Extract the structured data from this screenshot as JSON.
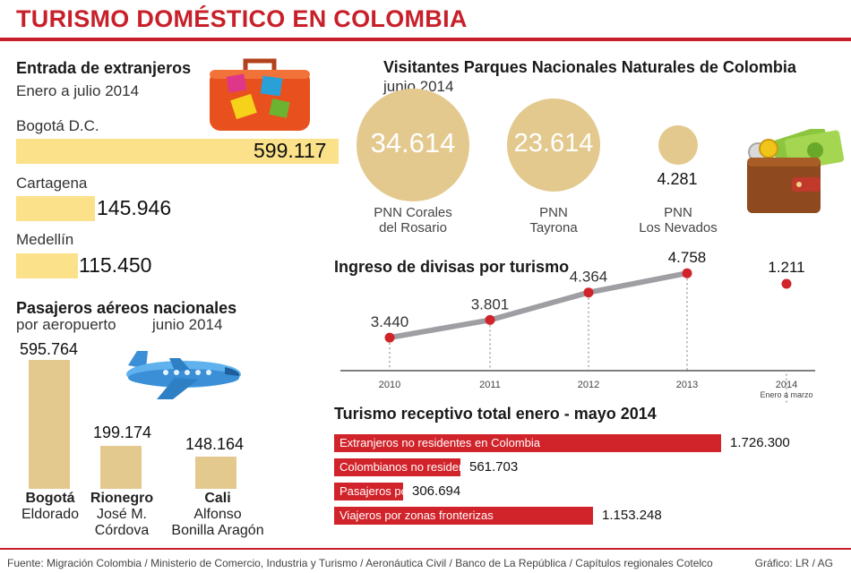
{
  "title": "TURISMO DOMÉSTICO EN COLOMBIA",
  "entrada": {
    "heading": "Entrada de extranjeros",
    "subheading": "Enero a julio 2014",
    "items": [
      {
        "city": "Bogotá D.C.",
        "value": "599.117"
      },
      {
        "city": "Cartagena",
        "value": "145.946"
      },
      {
        "city": "Medellín",
        "value": "115.450"
      }
    ]
  },
  "pasajeros": {
    "heading": "Pasajeros aéreos nacionales",
    "sub_left": "por aeropuerto",
    "sub_right": "junio 2014",
    "items": [
      {
        "value": "595.764",
        "name": "Bogotá",
        "line2": "Eldorado",
        "line3": ""
      },
      {
        "value": "199.174",
        "name": "Rionegro",
        "line2": "José M.",
        "line3": "Córdova"
      },
      {
        "value": "148.164",
        "name": "Cali",
        "line2": "Alfonso",
        "line3": "Bonilla Aragón"
      }
    ]
  },
  "parques": {
    "heading": "Visitantes Parques Nacionales Naturales de Colombia",
    "subheading": "junio 2014",
    "items": [
      {
        "value": "34.614",
        "line1": "PNN Corales",
        "line2": "del Rosario"
      },
      {
        "value": "23.614",
        "line1": "PNN",
        "line2": "Tayrona"
      },
      {
        "value": "4.281",
        "line1": "PNN",
        "line2": "Los Nevados"
      }
    ]
  },
  "divisas": {
    "heading": "Ingreso de divisas por turismo",
    "years": [
      "2010",
      "2011",
      "2012",
      "2013",
      "2014"
    ],
    "year_note": "Enero a marzo",
    "labels": [
      "3.440",
      "3.801",
      "4.364",
      "4.758",
      "1.211"
    ]
  },
  "receptivo": {
    "heading": "Turismo receptivo total enero - mayo 2014",
    "items": [
      {
        "label": "Extranjeros no residentes  en Colombia",
        "value": "1.726.300"
      },
      {
        "label": "Colombianos no residentes en Colombia",
        "value": "561.703"
      },
      {
        "label": "Pasajeros por cruceros",
        "value": "306.694"
      },
      {
        "label": "Viajeros por zonas fronterizas",
        "value": "1.153.248"
      }
    ]
  },
  "footer": {
    "source": "Fuente: Migración Colombia / Ministerio de Comercio, Industria y Turismo / Aeronáutica Civil / Banco de La República / Capítulos regionales Cotelco",
    "credit": "Gráfico: LR / AG"
  },
  "colors": {
    "accent": "#c8202a",
    "yellow_bar": "#fbe28a",
    "tan": "#e3c98e",
    "red_bar": "#d1232a"
  },
  "icons": [
    "suitcase-icon",
    "airplane-icon",
    "wallet-icon"
  ],
  "chart_data": [
    {
      "type": "bar",
      "title": "Entrada de extranjeros",
      "subtitle": "Enero a julio 2014",
      "categories": [
        "Bogotá D.C.",
        "Cartagena",
        "Medellín"
      ],
      "values": [
        599117,
        145946,
        115450
      ]
    },
    {
      "type": "bar",
      "title": "Pasajeros aéreos nacionales",
      "subtitle": "por aeropuerto junio 2014",
      "categories": [
        "Bogotá Eldorado",
        "Rionegro José M. Córdova",
        "Cali Alfonso Bonilla Aragón"
      ],
      "values": [
        595764,
        199174,
        148164
      ]
    },
    {
      "type": "scatter",
      "title": "Visitantes Parques Nacionales Naturales de Colombia",
      "subtitle": "junio 2014",
      "categories": [
        "PNN Corales del Rosario",
        "PNN Tayrona",
        "PNN Los Nevados"
      ],
      "values": [
        34614,
        23614,
        4281
      ]
    },
    {
      "type": "line",
      "title": "Ingreso de divisas por turismo",
      "x": [
        "2010",
        "2011",
        "2012",
        "2013",
        "2014 Enero a marzo"
      ],
      "values": [
        3440,
        3801,
        4364,
        4758,
        1211
      ],
      "ylim": [
        2800,
        5000
      ]
    },
    {
      "type": "bar",
      "title": "Turismo receptivo total enero - mayo 2014",
      "categories": [
        "Extranjeros no residentes  en Colombia",
        "Colombianos no residentes en Colombia",
        "Pasajeros por cruceros",
        "Viajeros por zonas fronterizas"
      ],
      "values": [
        1726300,
        561703,
        306694,
        1153248
      ]
    }
  ]
}
